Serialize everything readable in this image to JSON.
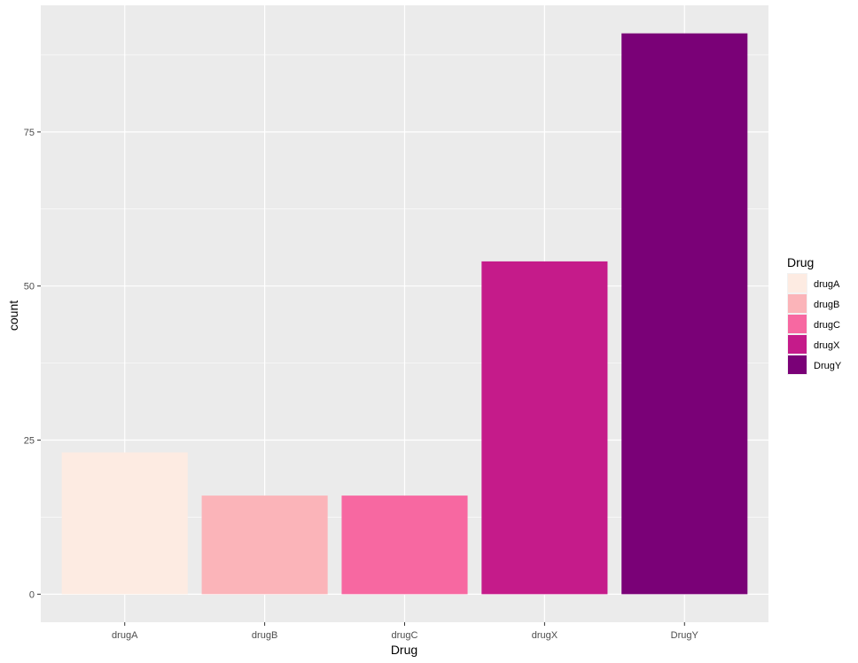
{
  "chart_data": {
    "type": "bar",
    "title": "",
    "xlabel": "Drug",
    "ylabel": "count",
    "categories": [
      "drugA",
      "drugB",
      "drugC",
      "drugX",
      "DrugY"
    ],
    "values": [
      23,
      16,
      16,
      54,
      91
    ],
    "colors": [
      "#FDEBE2",
      "#FBB4B9",
      "#F768A1",
      "#C51B8A",
      "#7A0177"
    ],
    "ylim": [
      -4.55,
      95.55
    ],
    "yticks": [
      0,
      25,
      50,
      75
    ],
    "grid": true,
    "panel_background": "#EBEBEB",
    "grid_color": "#FFFFFF",
    "legend": {
      "title": "Drug",
      "position": "right",
      "entries": [
        "drugA",
        "drugB",
        "drugC",
        "drugX",
        "DrugY"
      ]
    }
  }
}
